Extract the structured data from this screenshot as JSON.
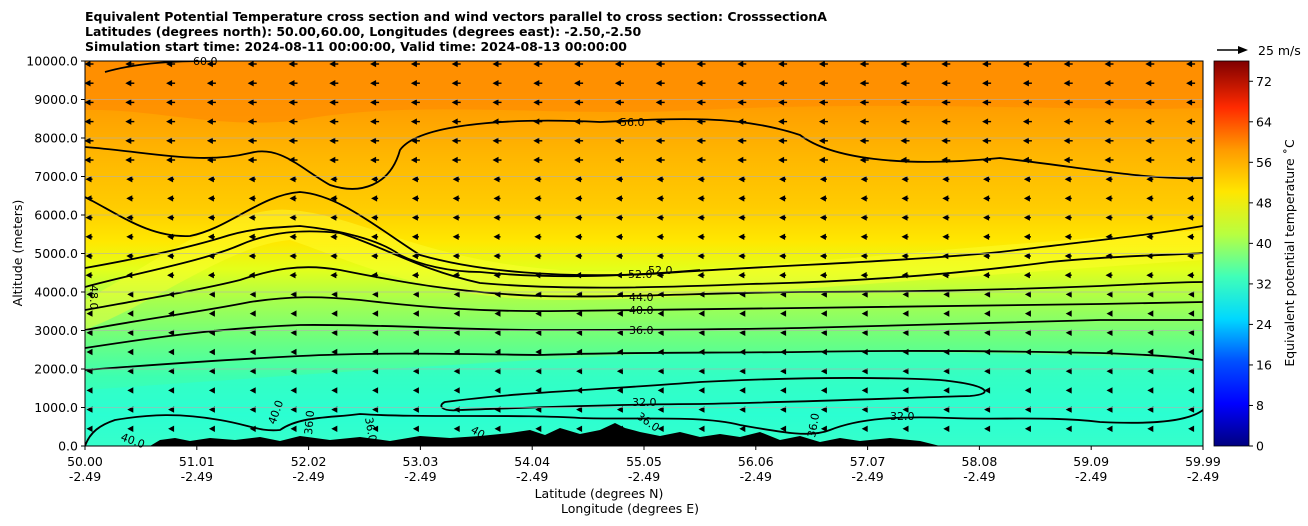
{
  "title_lines": [
    "Equivalent Potential Temperature cross section and wind vectors parallel to cross section: CrosssectionA",
    "Latitudes (degrees north): 50.00,60.00, Longitudes (degrees east): -2.50,-2.50",
    "Simulation start time: 2024-08-11 00:00:00, Valid time: 2024-08-13 00:00:00"
  ],
  "chart_data": {
    "type": "heatmap",
    "xlabel_lines": [
      "Latitude (degrees N)",
      "Longitude (degrees E)"
    ],
    "ylabel": "Altitude (meters)",
    "ylim": [
      0,
      10000
    ],
    "y_ticks": [
      "0.0",
      "1000.0",
      "2000.0",
      "3000.0",
      "4000.0",
      "5000.0",
      "6000.0",
      "7000.0",
      "8000.0",
      "9000.0",
      "10000.0"
    ],
    "x_ticks": [
      {
        "lat": "50.00",
        "lon": "-2.49"
      },
      {
        "lat": "51.01",
        "lon": "-2.49"
      },
      {
        "lat": "52.02",
        "lon": "-2.49"
      },
      {
        "lat": "53.03",
        "lon": "-2.49"
      },
      {
        "lat": "54.04",
        "lon": "-2.49"
      },
      {
        "lat": "55.05",
        "lon": "-2.49"
      },
      {
        "lat": "56.06",
        "lon": "-2.49"
      },
      {
        "lat": "57.07",
        "lon": "-2.49"
      },
      {
        "lat": "58.08",
        "lon": "-2.49"
      },
      {
        "lat": "59.09",
        "lon": "-2.49"
      },
      {
        "lat": "59.99",
        "lon": "-2.49"
      }
    ],
    "colorbar": {
      "label": "Equivalent potential temperature $^\\circ$C",
      "label_text": "Equivalent potential temperature ˚C",
      "range": [
        0,
        76
      ],
      "ticks": [
        "0",
        "8",
        "16",
        "24",
        "32",
        "40",
        "48",
        "56",
        "64",
        "72"
      ]
    },
    "wind_key": "25 m/s",
    "contour_labels": [
      "56.0",
      "52.0",
      "52.0",
      "44.0",
      "40.0",
      "36.0",
      "32.0",
      "32.0",
      "36.0",
      "48.0",
      "40.0",
      "36.0",
      "40.0",
      "36.0",
      "36.0",
      "40.0",
      "60.0"
    ],
    "grid": true
  }
}
